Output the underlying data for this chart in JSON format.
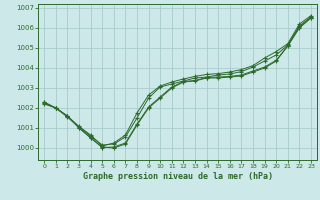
{
  "bg_color": "#cce8e8",
  "grid_color": "#aacccc",
  "line_color": "#2d6a2d",
  "xlabel": "Graphe pression niveau de la mer (hPa)",
  "ylim": [
    999.4,
    1007.2
  ],
  "xlim": [
    -0.5,
    23.5
  ],
  "yticks": [
    1000,
    1001,
    1002,
    1003,
    1004,
    1005,
    1006,
    1007
  ],
  "xticks": [
    0,
    1,
    2,
    3,
    4,
    5,
    6,
    7,
    8,
    9,
    10,
    11,
    12,
    13,
    14,
    15,
    16,
    17,
    18,
    19,
    20,
    21,
    22,
    23
  ],
  "series": [
    [
      1002.3,
      1002.0,
      1001.6,
      1001.0,
      1000.5,
      1000.05,
      1000.0,
      1000.2,
      1001.15,
      1002.0,
      1002.5,
      1003.0,
      1003.3,
      1003.35,
      1003.5,
      1003.5,
      1003.55,
      1003.6,
      1003.8,
      1004.0,
      1004.35,
      1005.1,
      1006.0,
      1006.5
    ],
    [
      1002.2,
      1002.0,
      1001.55,
      1001.05,
      1000.6,
      1000.15,
      1000.2,
      1000.55,
      1001.5,
      1002.5,
      1003.05,
      1003.2,
      1003.35,
      1003.5,
      1003.55,
      1003.65,
      1003.7,
      1003.82,
      1004.05,
      1004.35,
      1004.65,
      1005.15,
      1006.1,
      1006.55
    ],
    [
      1002.25,
      1002.0,
      1001.6,
      1001.08,
      1000.65,
      1000.1,
      1000.25,
      1000.65,
      1001.75,
      1002.65,
      1003.1,
      1003.3,
      1003.45,
      1003.58,
      1003.68,
      1003.72,
      1003.8,
      1003.92,
      1004.12,
      1004.5,
      1004.82,
      1005.22,
      1006.2,
      1006.62
    ],
    [
      1002.28,
      1002.0,
      1001.58,
      1001.02,
      1000.52,
      1000.02,
      1000.05,
      1000.25,
      1001.2,
      1002.05,
      1002.55,
      1003.05,
      1003.32,
      1003.38,
      1003.52,
      1003.55,
      1003.58,
      1003.65,
      1003.85,
      1004.05,
      1004.38,
      1005.12,
      1006.05,
      1006.52
    ]
  ]
}
